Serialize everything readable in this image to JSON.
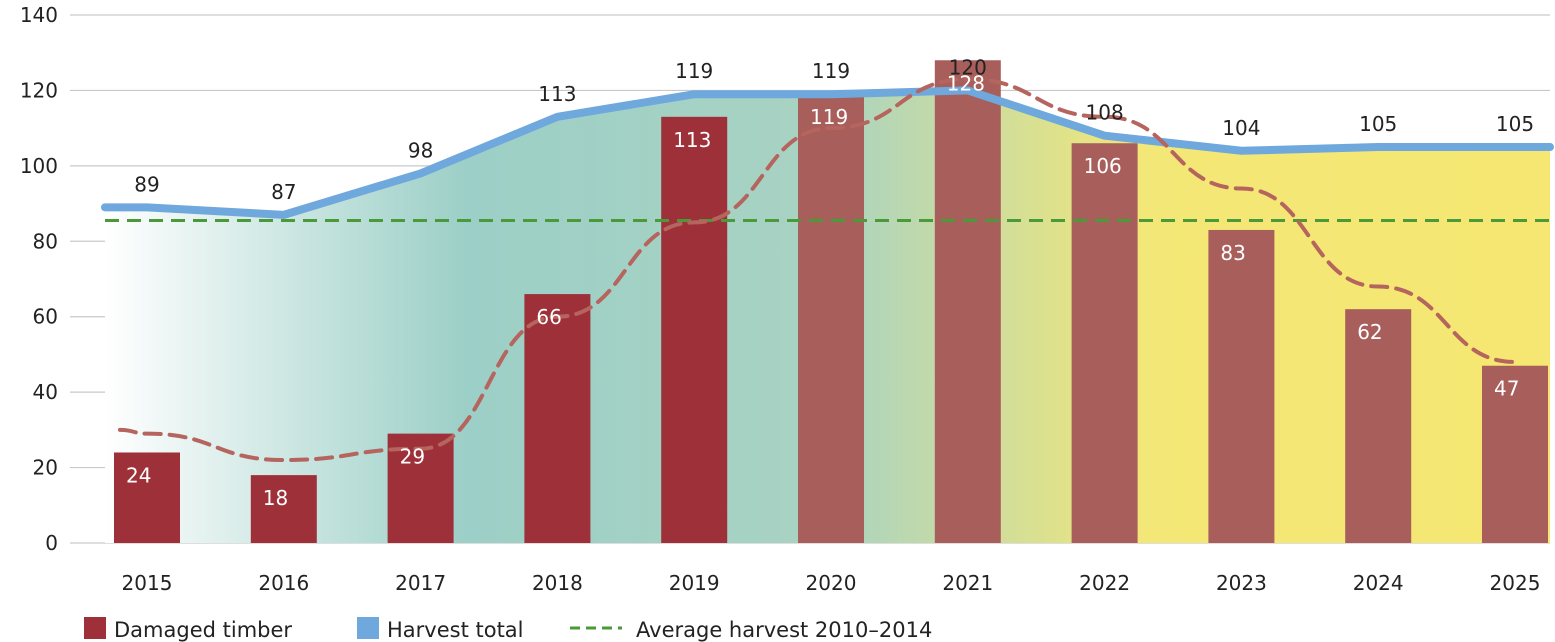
{
  "chart_data": {
    "type": "bar",
    "title": "",
    "xlabel": "",
    "ylabel": "",
    "ylim": [
      0,
      140
    ],
    "yticks": [
      0,
      20,
      40,
      60,
      80,
      100,
      120,
      140
    ],
    "grid": true,
    "categories": [
      "2015",
      "2016",
      "2017",
      "2018",
      "2019",
      "2020",
      "2021",
      "2022",
      "2023",
      "2024",
      "2025"
    ],
    "series": [
      {
        "name": "Damaged timber",
        "kind": "bar",
        "color": "#9e3039",
        "values": [
          24,
          18,
          29,
          66,
          113,
          119,
          128,
          106,
          83,
          62,
          47
        ],
        "labels": [
          "24",
          "18",
          "29",
          "66",
          "113",
          "119",
          "128",
          "106",
          "83",
          "62",
          "47"
        ]
      },
      {
        "name": "Harvest total",
        "kind": "line",
        "color": "#6fa8dc",
        "values": [
          89,
          87,
          98,
          113,
          119,
          119,
          120,
          108,
          104,
          105,
          105
        ],
        "labels": [
          "89",
          "87",
          "98",
          "113",
          "119",
          "119",
          "120",
          "108",
          "104",
          "105",
          "105"
        ]
      },
      {
        "kind": "line-dashed",
        "color": "#b5645e",
        "values": [
          29,
          22,
          25,
          60,
          85,
          110,
          123,
          113,
          94,
          68,
          48
        ]
      },
      {
        "name": "Average harvest 2010–2014",
        "kind": "reference-line",
        "color": "#4a9a3a",
        "value": 85.5
      }
    ],
    "legend": {
      "position": "bottom-left",
      "items": [
        "Damaged timber",
        "Harvest total",
        "Average harvest 2010–2014"
      ]
    },
    "background_gradient": [
      "#ffffff",
      "#9ccfc7",
      "#a9d3c2",
      "#f3e777",
      "#f6e772"
    ]
  }
}
